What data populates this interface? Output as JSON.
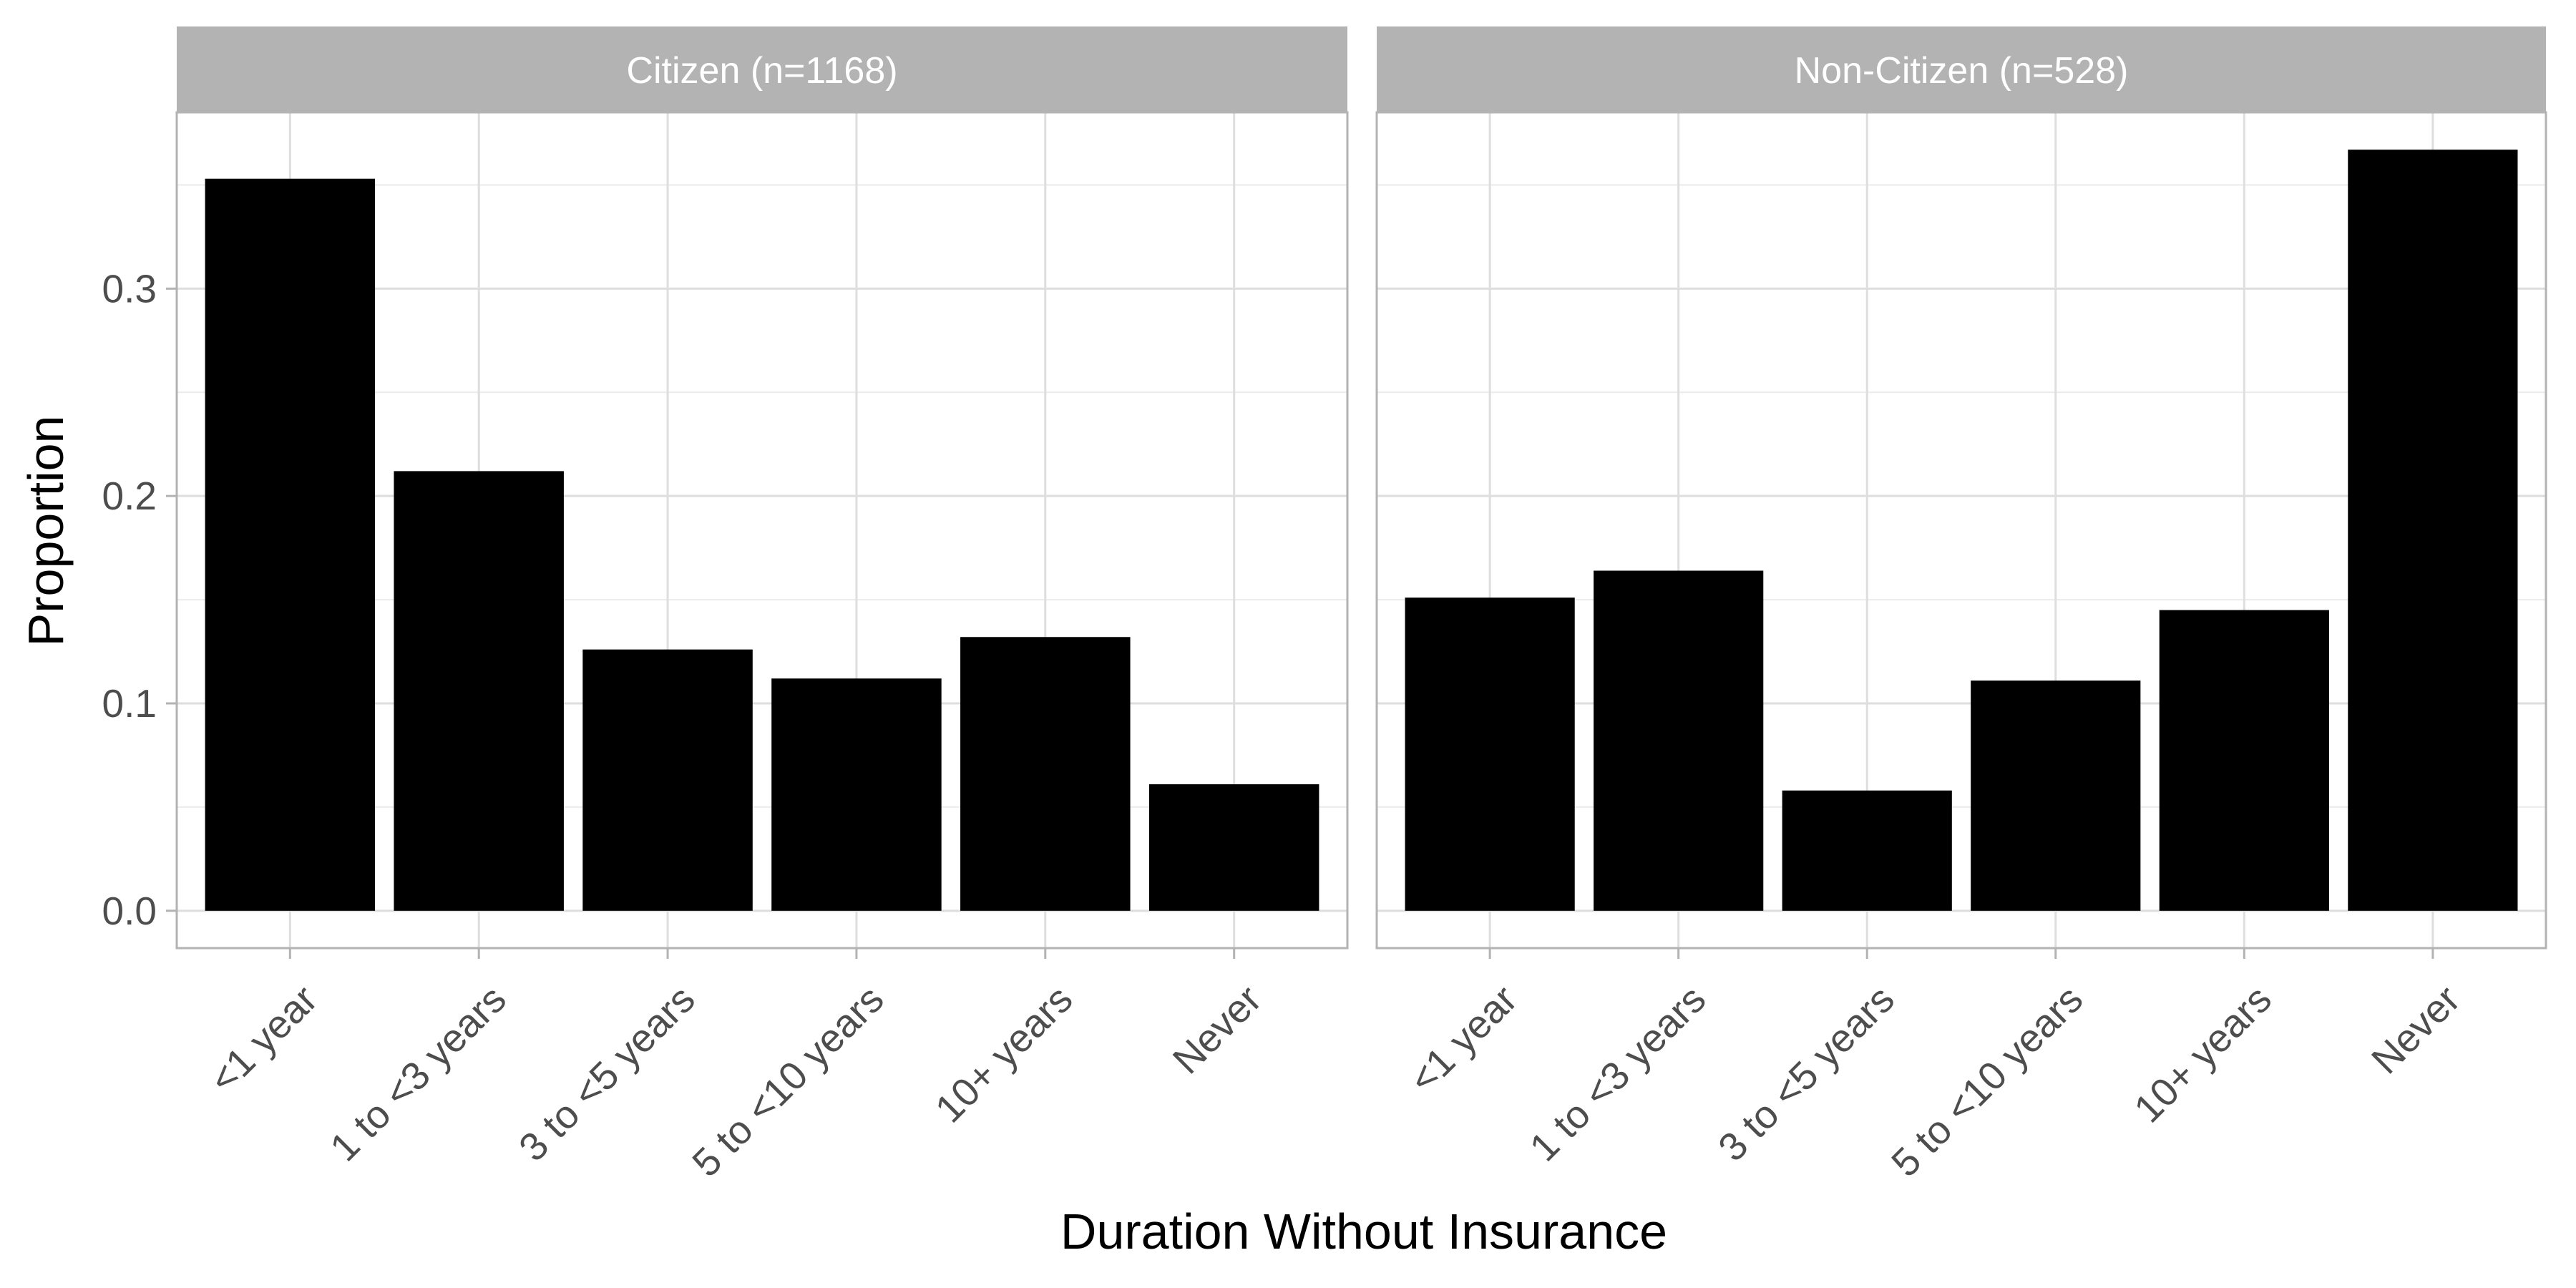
{
  "chart_data": {
    "type": "bar",
    "xlabel": "Duration Without Insurance",
    "ylabel": "Proportion",
    "ylim": [
      -0.018,
      0.385
    ],
    "yticks": [
      0.0,
      0.1,
      0.2,
      0.3
    ],
    "ytick_labels": [
      "0.0",
      "0.1",
      "0.2",
      "0.3"
    ],
    "grid": true,
    "bar_color": "#000000",
    "strip_color": "#b3b3b3",
    "categories": [
      "<1 year",
      "1 to <3 years",
      "3 to <5 years",
      "5 to <10 years",
      "10+ years",
      "Never"
    ],
    "panels": [
      {
        "title": "Citizen (n=1168)",
        "values": [
          0.353,
          0.212,
          0.126,
          0.112,
          0.132,
          0.061
        ]
      },
      {
        "title": "Non-Citizen (n=528)",
        "values": [
          0.151,
          0.164,
          0.058,
          0.111,
          0.145,
          0.367
        ]
      }
    ]
  }
}
